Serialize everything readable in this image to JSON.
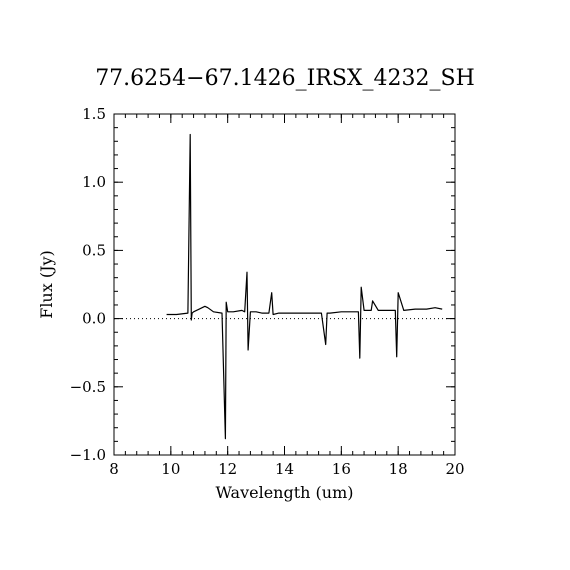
{
  "chart_data": {
    "type": "line",
    "title": "77.6254−67.1426_IRSX_4232_SH",
    "xlabel": "Wavelength (um)",
    "ylabel": "Flux (Jy)",
    "xlim": [
      8,
      20
    ],
    "ylim": [
      -1.0,
      1.5
    ],
    "x_ticks": [
      8,
      10,
      12,
      14,
      16,
      18,
      20
    ],
    "x_tick_labels": [
      "8",
      "10",
      "12",
      "14",
      "16",
      "18",
      "20"
    ],
    "y_ticks": [
      -1.0,
      -0.5,
      0.0,
      0.5,
      1.0,
      1.5
    ],
    "y_tick_labels": [
      "−1.0",
      "−0.5",
      "0.0",
      "0.5",
      "1.0",
      "1.5"
    ],
    "zero_line": {
      "y": 0.0,
      "style": "dotted"
    },
    "grid": false,
    "series": [
      {
        "x": [
          9.85,
          10.2,
          10.6,
          10.68,
          10.72,
          10.75,
          10.8,
          11.0,
          11.2,
          11.3,
          11.5,
          11.8,
          11.92,
          11.95,
          12.0,
          12.05,
          12.2,
          12.5,
          12.6,
          12.68,
          12.72,
          12.8,
          13.0,
          13.2,
          13.45,
          13.55,
          13.6,
          13.8,
          14.0,
          14.4,
          14.6,
          15.0,
          15.3,
          15.45,
          15.5,
          15.6,
          16.0,
          16.4,
          16.6,
          16.65,
          16.7,
          16.8,
          17.05,
          17.1,
          17.3,
          17.6,
          17.9,
          17.95,
          18.0,
          18.2,
          18.6,
          19.0,
          19.3,
          19.55
        ],
        "y": [
          0.03,
          0.03,
          0.04,
          1.35,
          -0.01,
          0.04,
          0.05,
          0.07,
          0.09,
          0.08,
          0.05,
          0.04,
          -0.88,
          0.12,
          0.05,
          0.05,
          0.05,
          0.06,
          0.05,
          0.34,
          -0.23,
          0.05,
          0.05,
          0.04,
          0.04,
          0.19,
          0.03,
          0.04,
          0.04,
          0.04,
          0.04,
          0.04,
          0.04,
          -0.19,
          0.04,
          0.04,
          0.05,
          0.05,
          0.05,
          -0.29,
          0.23,
          0.06,
          0.06,
          0.13,
          0.06,
          0.06,
          0.06,
          -0.28,
          0.19,
          0.06,
          0.07,
          0.07,
          0.08,
          0.07
        ]
      }
    ]
  }
}
